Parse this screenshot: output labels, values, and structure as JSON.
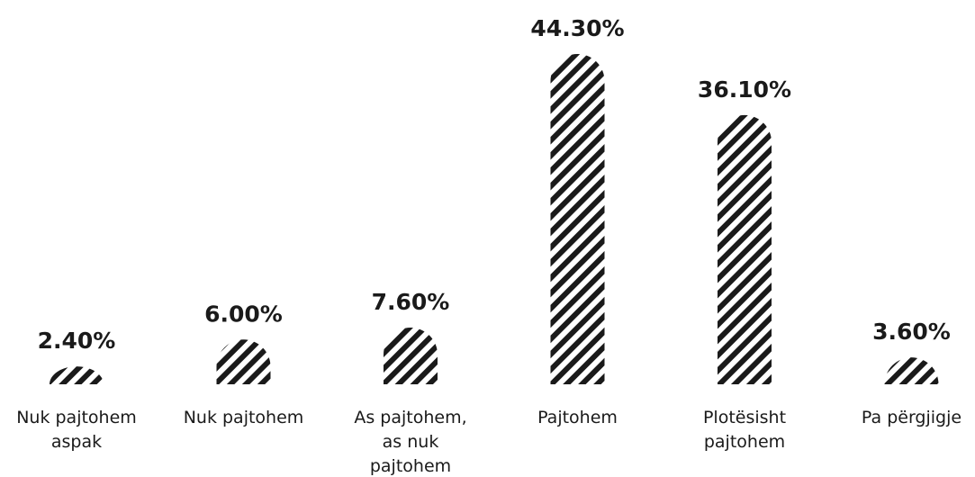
{
  "chart_data": {
    "type": "bar",
    "categories": [
      [
        "Nuk pajtohem",
        "aspak"
      ],
      [
        "Nuk pajtohem"
      ],
      [
        "As pajtohem,",
        "as nuk",
        "pajtohem"
      ],
      [
        "Pajtohem"
      ],
      [
        "Plotësisht",
        "pajtohem"
      ],
      [
        "Pa përgjigje"
      ]
    ],
    "values": [
      2.4,
      6.0,
      7.6,
      44.3,
      36.1,
      3.6
    ],
    "value_labels": [
      "2.40%",
      "6.00%",
      "7.60%",
      "44.30%",
      "36.10%",
      "3.60%"
    ],
    "title": "",
    "xlabel": "",
    "ylabel": "",
    "grid": false,
    "legend": "none",
    "bar_fill": "diagonal-stripes",
    "bar_color": "#1a1a1a",
    "background": "#ffffff"
  }
}
